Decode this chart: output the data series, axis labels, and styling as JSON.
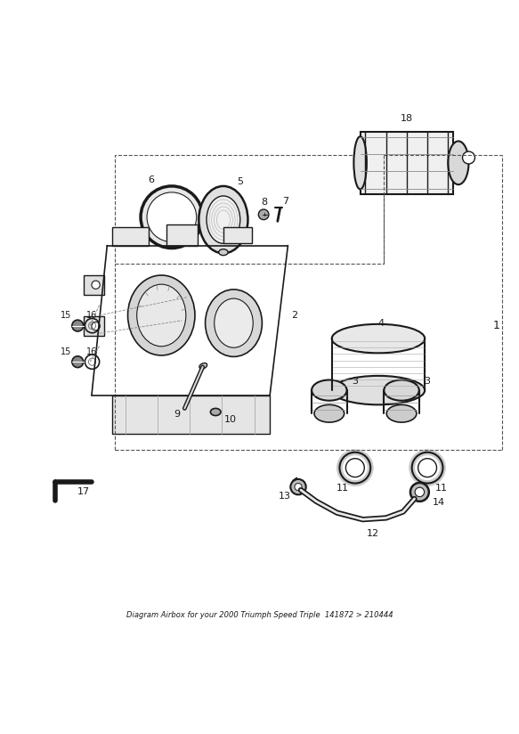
{
  "title": "Diagram Airbox for your 2000 Triumph Speed Triple  141872 > 210444",
  "background_color": "#ffffff",
  "line_color": "#1a1a1a",
  "fig_width": 5.83,
  "fig_height": 8.24,
  "dpi": 100
}
